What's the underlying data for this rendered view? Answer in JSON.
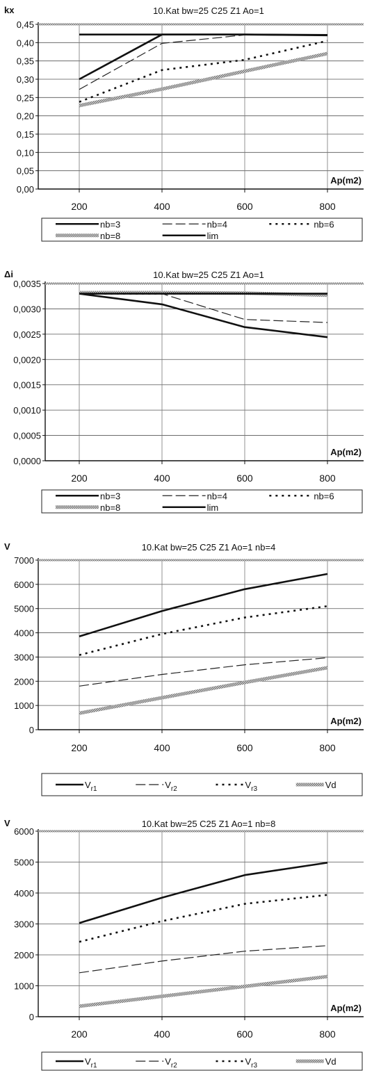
{
  "chart_data": [
    {
      "type": "line",
      "title": "10.Kat bw=25 C25 Z1 Ao=1",
      "ylabel": "kx",
      "xlabel": "Ap(m2)",
      "categories": [
        "200",
        "400",
        "600",
        "800"
      ],
      "ylim": [
        0,
        0.45
      ],
      "yticks": [
        "0,00",
        "0,05",
        "0,10",
        "0,15",
        "0,20",
        "0,25",
        "0,30",
        "0,35",
        "0,40",
        "0,45"
      ],
      "grid": true,
      "legend_position": "bottom",
      "legend_columns": 3,
      "series": [
        {
          "name": "nb=3",
          "style": "solid-thick",
          "color": "#111111",
          "values": [
            0.3,
            0.422,
            0.422,
            0.42
          ]
        },
        {
          "name": "nb=4",
          "style": "long-dash",
          "color": "#222222",
          "values": [
            0.272,
            0.398,
            0.421,
            0.42
          ]
        },
        {
          "name": "nb=6",
          "style": "dotted",
          "color": "#111111",
          "values": [
            0.238,
            0.325,
            0.353,
            0.405
          ]
        },
        {
          "name": "nb=8",
          "style": "hatched",
          "color": "#9a9a9a",
          "values": [
            0.228,
            0.273,
            0.322,
            0.37
          ]
        },
        {
          "name": "lim",
          "style": "solid-thick",
          "color": "#111111",
          "values": [
            0.422,
            0.422,
            0.422,
            0.421
          ]
        }
      ]
    },
    {
      "type": "line",
      "title": "10.Kat bw=25 C25 Z1 Ao=1",
      "ylabel": "Δi",
      "xlabel": "Ap(m2)",
      "categories": [
        "200",
        "400",
        "600",
        "800"
      ],
      "ylim": [
        0,
        0.0035
      ],
      "yticks": [
        "0,0000",
        "0,0005",
        "0,0010",
        "0,0015",
        "0,0020",
        "0,0025",
        "0,0030",
        "0,0035"
      ],
      "grid": true,
      "legend_position": "bottom",
      "legend_columns": 3,
      "series": [
        {
          "name": "nb=3",
          "style": "solid-thick",
          "color": "#111111",
          "values": [
            0.0033,
            0.00309,
            0.00264,
            0.00244
          ]
        },
        {
          "name": "nb=4",
          "style": "long-dash",
          "color": "#222222",
          "values": [
            0.0033,
            0.0033,
            0.00279,
            0.00273
          ]
        },
        {
          "name": "nb=6",
          "style": "dotted",
          "color": "#111111",
          "values": [
            0.0033,
            0.0033,
            0.0033,
            0.00328
          ]
        },
        {
          "name": "nb=8",
          "style": "hatched",
          "color": "#9a9a9a",
          "values": [
            0.00332,
            0.00332,
            0.00331,
            0.00327
          ]
        },
        {
          "name": "lim",
          "style": "solid-thick",
          "color": "#111111",
          "values": [
            0.0033,
            0.0033,
            0.0033,
            0.0033
          ]
        }
      ]
    },
    {
      "type": "line",
      "title": "10.Kat bw=25 C25 Z1 Ao=1 nb=4",
      "ylabel": "V",
      "xlabel": "Ap(m2)",
      "categories": [
        "200",
        "400",
        "600",
        "800"
      ],
      "ylim": [
        0,
        7000
      ],
      "yticks": [
        "0",
        "1000",
        "2000",
        "3000",
        "4000",
        "5000",
        "6000",
        "7000"
      ],
      "grid": true,
      "legend_position": "bottom",
      "legend_columns": 4,
      "series": [
        {
          "name": "V",
          "subscript": "r1",
          "style": "solid-thick",
          "color": "#111111",
          "values": [
            3850,
            4900,
            5800,
            6430
          ]
        },
        {
          "name": "V",
          "subscript": "r2",
          "style": "long-dash",
          "color": "#222222",
          "values": [
            1800,
            2280,
            2680,
            2970
          ]
        },
        {
          "name": "V",
          "subscript": "r3",
          "style": "dotted",
          "color": "#111111",
          "values": [
            3080,
            3950,
            4630,
            5100
          ]
        },
        {
          "name": "Vd",
          "style": "hatched",
          "color": "#9a9a9a",
          "values": [
            680,
            1320,
            1950,
            2560
          ]
        }
      ]
    },
    {
      "type": "line",
      "title": "10.Kat bw=25 C25 Z1 Ao=1 nb=8",
      "ylabel": "V",
      "xlabel": "Ap(m2)",
      "categories": [
        "200",
        "400",
        "600",
        "800"
      ],
      "ylim": [
        0,
        6000
      ],
      "yticks": [
        "0",
        "1000",
        "2000",
        "3000",
        "4000",
        "5000",
        "6000"
      ],
      "grid": true,
      "legend_position": "bottom",
      "legend_columns": 4,
      "series": [
        {
          "name": "V",
          "subscript": "r1",
          "style": "solid-thick",
          "color": "#111111",
          "values": [
            3030,
            3850,
            4580,
            4980
          ]
        },
        {
          "name": "V",
          "subscript": "r2",
          "style": "long-dash",
          "color": "#222222",
          "values": [
            1420,
            1800,
            2120,
            2300
          ]
        },
        {
          "name": "V",
          "subscript": "r3",
          "style": "dotted",
          "color": "#111111",
          "values": [
            2420,
            3090,
            3650,
            3940
          ]
        },
        {
          "name": "Vd",
          "style": "hatched",
          "color": "#9a9a9a",
          "values": [
            340,
            660,
            980,
            1300
          ]
        }
      ]
    }
  ]
}
